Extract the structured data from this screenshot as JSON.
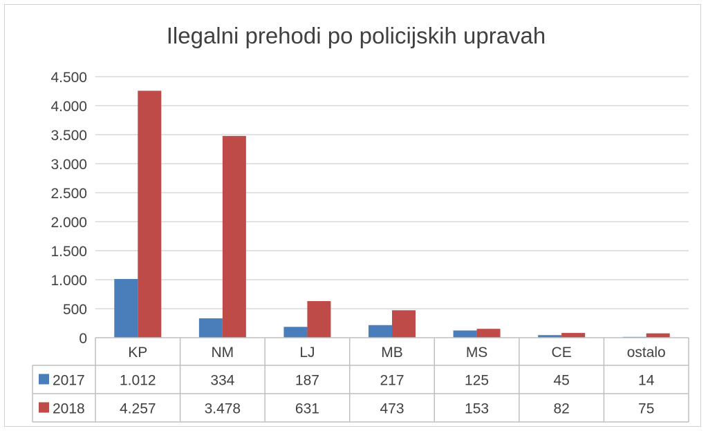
{
  "chart_data": {
    "type": "bar",
    "title": "Ilegalni prehodi po policijskih upravah",
    "categories": [
      "KP",
      "NM",
      "LJ",
      "MB",
      "MS",
      "CE",
      "ostalo"
    ],
    "series": [
      {
        "name": "2017",
        "color": "#4a7ebb",
        "values": [
          1012,
          334,
          187,
          217,
          125,
          45,
          14
        ],
        "labels": [
          "1.012",
          "334",
          "187",
          "217",
          "125",
          "45",
          "14"
        ]
      },
      {
        "name": "2018",
        "color": "#be4b48",
        "values": [
          4257,
          3478,
          631,
          473,
          153,
          82,
          75
        ],
        "labels": [
          "4.257",
          "3.478",
          "631",
          "473",
          "153",
          "82",
          "75"
        ]
      }
    ],
    "ylim": [
      0,
      4500
    ],
    "yticks": [
      0,
      500,
      1000,
      1500,
      2000,
      2500,
      3000,
      3500,
      4000,
      4500
    ],
    "ytick_labels": [
      "0",
      "500",
      "1.000",
      "1.500",
      "2.000",
      "2.500",
      "3.000",
      "3.500",
      "4.000",
      "4.500"
    ],
    "grid": true,
    "data_table": true,
    "xlabel": "",
    "ylabel": ""
  }
}
